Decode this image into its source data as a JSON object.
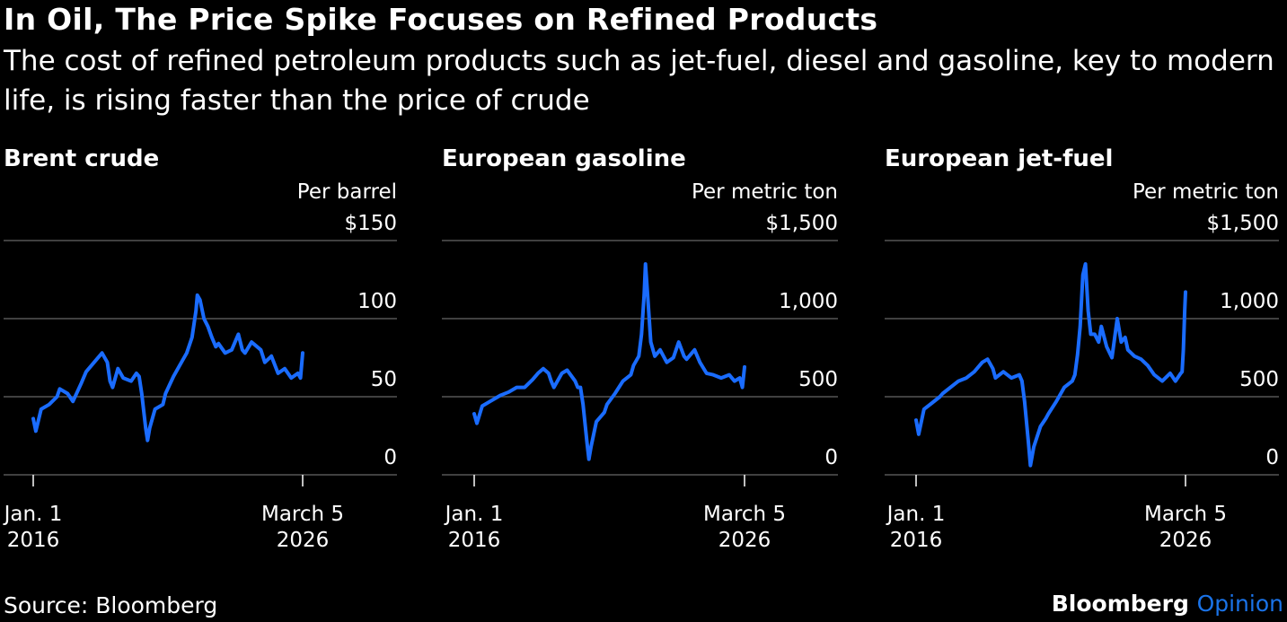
{
  "title": "In Oil, The Price Spike Focuses on Refined Products",
  "subtitle": "The cost of refined petroleum products such as jet-fuel, diesel and gasoline, key to modern life, is rising faster than the price of crude",
  "source": "Source: Bloomberg",
  "brand": {
    "primary": "Bloomberg",
    "secondary": "Opinion"
  },
  "colors": {
    "background": "#000000",
    "line": "#1a6cff",
    "grid": "#555555",
    "text": "#ffffff",
    "brand_accent": "#1a73e8"
  },
  "chart_data": [
    {
      "type": "line",
      "title": "Brent crude",
      "unit_label": "Per barrel",
      "ylim": [
        0,
        150
      ],
      "yticks": [
        0,
        50,
        100,
        150
      ],
      "ytick_labels": [
        "0",
        "50",
        "100",
        "$150"
      ],
      "xlim": [
        2016.0,
        2026.18
      ],
      "xticks": [
        {
          "x": 2016.0,
          "line1": "Jan. 1",
          "line2": "2016"
        },
        {
          "x": 2026.18,
          "line1": "March 5",
          "line2": "2026"
        }
      ],
      "grid": true,
      "series": [
        {
          "x": [
            2016.0,
            2016.1,
            2016.3,
            2016.6,
            2016.9,
            2017.0,
            2017.3,
            2017.5,
            2017.8,
            2018.0,
            2018.3,
            2018.6,
            2018.8,
            2018.9,
            2019.0,
            2019.2,
            2019.4,
            2019.7,
            2019.9,
            2020.0,
            2020.1,
            2020.25,
            2020.32,
            2020.4,
            2020.6,
            2020.9,
            2021.0,
            2021.3,
            2021.6,
            2021.8,
            2022.0,
            2022.15,
            2022.2,
            2022.3,
            2022.45,
            2022.6,
            2022.75,
            2022.9,
            2023.0,
            2023.25,
            2023.5,
            2023.75,
            2023.9,
            2024.0,
            2024.25,
            2024.6,
            2024.75,
            2025.0,
            2025.25,
            2025.5,
            2025.75,
            2026.0,
            2026.1,
            2026.18
          ],
          "y": [
            36,
            28,
            42,
            45,
            50,
            55,
            52,
            47,
            58,
            66,
            72,
            78,
            72,
            60,
            56,
            68,
            62,
            60,
            65,
            63,
            52,
            30,
            22,
            30,
            42,
            45,
            52,
            63,
            72,
            78,
            88,
            105,
            115,
            112,
            100,
            95,
            88,
            82,
            84,
            78,
            80,
            90,
            80,
            78,
            85,
            80,
            72,
            76,
            65,
            68,
            62,
            65,
            62,
            78
          ]
        }
      ]
    },
    {
      "type": "line",
      "title": "European gasoline",
      "unit_label": "Per metric ton",
      "ylim": [
        0,
        1500
      ],
      "yticks": [
        0,
        500,
        1000,
        1500
      ],
      "ytick_labels": [
        "0",
        "500",
        "1,000",
        "$1,500"
      ],
      "xlim": [
        2016.0,
        2026.18
      ],
      "xticks": [
        {
          "x": 2016.0,
          "line1": "Jan. 1",
          "line2": "2016"
        },
        {
          "x": 2026.18,
          "line1": "March 5",
          "line2": "2026"
        }
      ],
      "grid": true,
      "series": [
        {
          "x": [
            2016.0,
            2016.1,
            2016.3,
            2016.6,
            2016.9,
            2017.0,
            2017.3,
            2017.6,
            2017.9,
            2018.2,
            2018.4,
            2018.6,
            2018.8,
            2018.9,
            2019.0,
            2019.3,
            2019.5,
            2019.8,
            2019.9,
            2020.0,
            2020.1,
            2020.25,
            2020.32,
            2020.4,
            2020.6,
            2020.9,
            2021.0,
            2021.3,
            2021.6,
            2021.9,
            2022.0,
            2022.2,
            2022.3,
            2022.4,
            2022.45,
            2022.55,
            2022.65,
            2022.8,
            2023.0,
            2023.25,
            2023.5,
            2023.7,
            2023.9,
            2024.0,
            2024.3,
            2024.5,
            2024.75,
            2025.0,
            2025.3,
            2025.6,
            2025.8,
            2026.0,
            2026.1,
            2026.18
          ],
          "y": [
            390,
            330,
            440,
            470,
            500,
            510,
            530,
            560,
            560,
            610,
            650,
            680,
            650,
            600,
            560,
            650,
            670,
            600,
            560,
            560,
            450,
            200,
            100,
            180,
            340,
            400,
            450,
            520,
            600,
            640,
            700,
            760,
            900,
            1150,
            1350,
            1100,
            850,
            760,
            800,
            720,
            750,
            850,
            760,
            740,
            800,
            720,
            650,
            640,
            620,
            640,
            600,
            620,
            560,
            690
          ]
        }
      ]
    },
    {
      "type": "line",
      "title": "European jet-fuel",
      "unit_label": "Per metric ton",
      "ylim": [
        0,
        1500
      ],
      "yticks": [
        0,
        500,
        1000,
        1500
      ],
      "ytick_labels": [
        "0",
        "500",
        "1,000",
        "$1,500"
      ],
      "xlim": [
        2016.0,
        2026.18
      ],
      "xticks": [
        {
          "x": 2016.0,
          "line1": "Jan. 1",
          "line2": "2016"
        },
        {
          "x": 2026.18,
          "line1": "March 5",
          "line2": "2026"
        }
      ],
      "grid": true,
      "series": [
        {
          "x": [
            2016.0,
            2016.1,
            2016.3,
            2016.6,
            2016.9,
            2017.0,
            2017.3,
            2017.6,
            2017.9,
            2018.2,
            2018.5,
            2018.7,
            2018.9,
            2019.0,
            2019.3,
            2019.6,
            2019.9,
            2020.0,
            2020.1,
            2020.25,
            2020.32,
            2020.45,
            2020.7,
            2020.9,
            2021.0,
            2021.3,
            2021.6,
            2021.9,
            2022.0,
            2022.1,
            2022.2,
            2022.3,
            2022.4,
            2022.5,
            2022.6,
            2022.75,
            2022.9,
            2023.0,
            2023.2,
            2023.4,
            2023.6,
            2023.75,
            2023.9,
            2024.0,
            2024.25,
            2024.5,
            2024.75,
            2025.0,
            2025.3,
            2025.6,
            2025.8,
            2026.0,
            2026.05,
            2026.1,
            2026.15,
            2026.18
          ],
          "y": [
            350,
            260,
            420,
            460,
            500,
            520,
            560,
            600,
            620,
            660,
            720,
            740,
            680,
            620,
            660,
            620,
            640,
            600,
            470,
            200,
            60,
            180,
            310,
            360,
            390,
            470,
            560,
            600,
            640,
            770,
            950,
            1280,
            1350,
            1050,
            900,
            900,
            850,
            950,
            820,
            750,
            1000,
            850,
            880,
            800,
            760,
            740,
            700,
            640,
            600,
            650,
            600,
            650,
            660,
            800,
            1050,
            1170
          ]
        }
      ]
    }
  ]
}
